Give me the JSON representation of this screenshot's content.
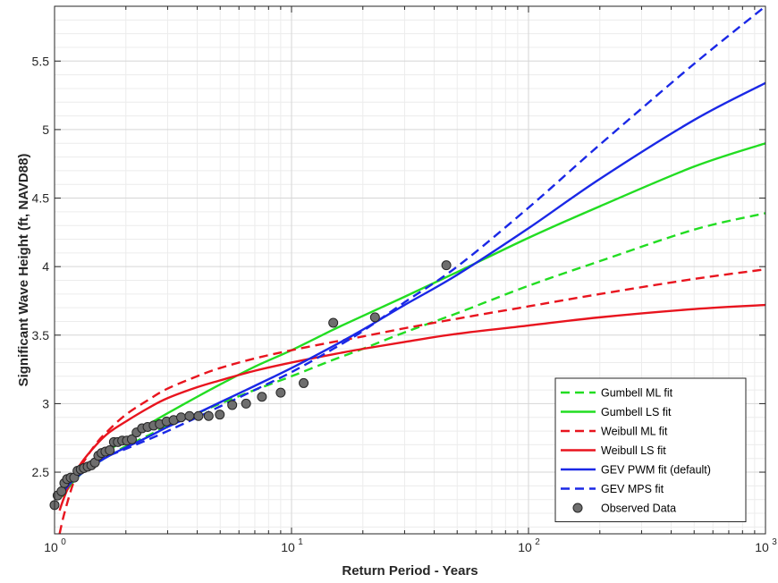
{
  "chart_data": {
    "type": "line",
    "xlabel": "Return Period - Years",
    "ylabel": "Significant Wave Height (ft, NAVD88)",
    "xscale": "log",
    "xlim": [
      1,
      1000
    ],
    "ylim": [
      2.05,
      5.9
    ],
    "x_major_ticks": [
      1,
      10,
      100,
      1000
    ],
    "x_tick_labels": [
      {
        "base": "10",
        "exp": "0"
      },
      {
        "base": "10",
        "exp": "1"
      },
      {
        "base": "10",
        "exp": "2"
      },
      {
        "base": "10",
        "exp": "3"
      }
    ],
    "y_ticks": [
      2.5,
      3,
      3.5,
      4,
      4.5,
      5,
      5.5
    ],
    "y_tick_labels": [
      "2.5",
      "3",
      "3.5",
      "4",
      "4.5",
      "5",
      "5.5"
    ],
    "grid": true,
    "legend_position": "bottom-right",
    "series": [
      {
        "name": "Gumbell ML fit",
        "color": "#22dd22",
        "dash": "dashed",
        "x": [
          1.08,
          1.2,
          1.4,
          1.7,
          2,
          2.5,
          3,
          4,
          5,
          7,
          10,
          15,
          20,
          30,
          50,
          100,
          200,
          500,
          1000
        ],
        "y": [
          2.36,
          2.44,
          2.53,
          2.62,
          2.69,
          2.77,
          2.84,
          2.93,
          3.0,
          3.1,
          3.2,
          3.32,
          3.4,
          3.52,
          3.66,
          3.86,
          4.04,
          4.27,
          4.39
        ]
      },
      {
        "name": "Gumbell LS fit",
        "color": "#22dd22",
        "dash": "solid",
        "x": [
          1.08,
          1.2,
          1.4,
          1.7,
          2,
          2.5,
          3,
          4,
          5,
          7,
          10,
          15,
          20,
          30,
          50,
          100,
          200,
          500,
          1000
        ],
        "y": [
          2.32,
          2.43,
          2.54,
          2.66,
          2.74,
          2.85,
          2.93,
          3.05,
          3.14,
          3.27,
          3.39,
          3.54,
          3.64,
          3.78,
          3.96,
          4.21,
          4.44,
          4.73,
          4.9
        ]
      },
      {
        "name": "Weibull ML fit",
        "color": "#e8141e",
        "dash": "dashed",
        "x": [
          1.05,
          1.1,
          1.2,
          1.3,
          1.5,
          1.7,
          2,
          2.5,
          3,
          4,
          5,
          7,
          10,
          15,
          20,
          30,
          50,
          100,
          200,
          500,
          1000
        ],
        "y": [
          2.05,
          2.2,
          2.42,
          2.55,
          2.71,
          2.81,
          2.92,
          3.03,
          3.11,
          3.2,
          3.26,
          3.33,
          3.39,
          3.45,
          3.49,
          3.55,
          3.62,
          3.71,
          3.8,
          3.91,
          3.98
        ]
      },
      {
        "name": "Weibull LS fit",
        "color": "#e8141e",
        "dash": "solid",
        "x": [
          1.05,
          1.1,
          1.2,
          1.3,
          1.5,
          1.7,
          2,
          2.5,
          3,
          4,
          5,
          7,
          10,
          15,
          20,
          30,
          50,
          100,
          200,
          500,
          1000
        ],
        "y": [
          2.22,
          2.32,
          2.47,
          2.57,
          2.7,
          2.79,
          2.87,
          2.97,
          3.04,
          3.12,
          3.17,
          3.24,
          3.3,
          3.36,
          3.4,
          3.45,
          3.51,
          3.57,
          3.63,
          3.69,
          3.72
        ]
      },
      {
        "name": "GEV PWM fit (default)",
        "color": "#1a28e6",
        "dash": "solid",
        "x": [
          1.08,
          1.2,
          1.4,
          1.7,
          2,
          2.5,
          3,
          4,
          5,
          7,
          10,
          15,
          20,
          30,
          50,
          100,
          200,
          500,
          1000
        ],
        "y": [
          2.35,
          2.44,
          2.53,
          2.62,
          2.68,
          2.76,
          2.83,
          2.93,
          3.01,
          3.13,
          3.26,
          3.42,
          3.54,
          3.72,
          3.94,
          4.28,
          4.64,
          5.07,
          5.34
        ]
      },
      {
        "name": "GEV MPS fit",
        "color": "#1a28e6",
        "dash": "dashed",
        "x": [
          1.08,
          1.2,
          1.4,
          1.7,
          2,
          2.5,
          3,
          4,
          5,
          7,
          10,
          15,
          20,
          30,
          50,
          100,
          200,
          500,
          1000
        ],
        "y": [
          2.39,
          2.46,
          2.54,
          2.62,
          2.67,
          2.74,
          2.8,
          2.9,
          2.98,
          3.1,
          3.23,
          3.4,
          3.53,
          3.74,
          4.0,
          4.43,
          4.89,
          5.48,
          5.9
        ]
      }
    ],
    "observed": {
      "name": "Observed Data",
      "color": "#6e6e6e",
      "x": [
        1.0,
        1.03,
        1.07,
        1.1,
        1.13,
        1.17,
        1.21,
        1.25,
        1.29,
        1.33,
        1.38,
        1.43,
        1.48,
        1.53,
        1.58,
        1.64,
        1.71,
        1.78,
        1.85,
        1.93,
        2.02,
        2.12,
        2.22,
        2.34,
        2.47,
        2.62,
        2.78,
        2.97,
        3.18,
        3.42,
        3.71,
        4.05,
        4.47,
        4.98,
        5.62,
        6.43,
        7.5,
        9.0,
        11.25,
        15.0,
        22.5,
        45.0
      ],
      "y": [
        2.26,
        2.33,
        2.36,
        2.42,
        2.45,
        2.46,
        2.46,
        2.51,
        2.52,
        2.53,
        2.54,
        2.55,
        2.57,
        2.62,
        2.64,
        2.65,
        2.66,
        2.72,
        2.72,
        2.73,
        2.73,
        2.74,
        2.79,
        2.82,
        2.83,
        2.84,
        2.85,
        2.87,
        2.88,
        2.9,
        2.91,
        2.91,
        2.91,
        2.92,
        2.99,
        3.0,
        3.05,
        3.08,
        3.15,
        3.59,
        3.63,
        4.01
      ]
    }
  }
}
